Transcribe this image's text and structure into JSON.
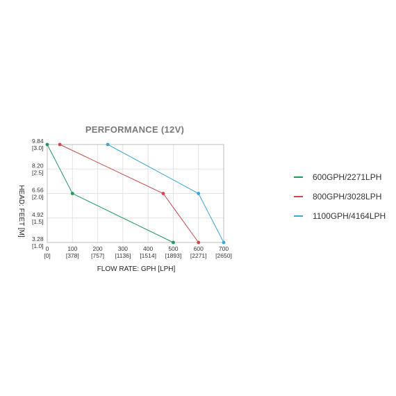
{
  "chart_data": {
    "type": "line",
    "title": "PERFORMANCE (12V)",
    "xlabel": "FLOW RATE: GPH [LPH]",
    "ylabel": "HEAD: FEET [M]",
    "xlim": [
      0,
      700
    ],
    "ylim": [
      3.28,
      9.84
    ],
    "x_ticks": [
      {
        "value": 0,
        "label": "0",
        "sub": "[0]"
      },
      {
        "value": 100,
        "label": "100",
        "sub": "[378]"
      },
      {
        "value": 200,
        "label": "200",
        "sub": "[757]"
      },
      {
        "value": 300,
        "label": "300",
        "sub": "[1136]"
      },
      {
        "value": 400,
        "label": "400",
        "sub": "[1514]"
      },
      {
        "value": 500,
        "label": "500",
        "sub": "[1893]"
      },
      {
        "value": 600,
        "label": "600",
        "sub": "[2271]"
      },
      {
        "value": 700,
        "label": "700",
        "sub": "[2650]"
      }
    ],
    "y_ticks": [
      {
        "value": 9.84,
        "label": "9.84",
        "sub": "[3.0]"
      },
      {
        "value": 8.2,
        "label": "8.20",
        "sub": "[2.5]"
      },
      {
        "value": 6.56,
        "label": "6.56",
        "sub": "[2.0]"
      },
      {
        "value": 4.92,
        "label": "4.92",
        "sub": "[1.5]"
      },
      {
        "value": 3.28,
        "label": "3.28",
        "sub": "[1.0]"
      }
    ],
    "grid": true,
    "legend_position": "right",
    "series": [
      {
        "name": "600GPH/2271LPH",
        "color": "#1e9b5a",
        "points": [
          [
            0,
            9.84
          ],
          [
            100,
            6.56
          ],
          [
            500,
            3.28
          ]
        ]
      },
      {
        "name": "800GPH/3028LPH",
        "color": "#d0454a",
        "points": [
          [
            50,
            9.84
          ],
          [
            460,
            6.56
          ],
          [
            600,
            3.28
          ]
        ]
      },
      {
        "name": "1100GPH/4164LPH",
        "color": "#3aa7d6",
        "points": [
          [
            240,
            9.84
          ],
          [
            600,
            6.56
          ],
          [
            700,
            3.28
          ]
        ]
      }
    ]
  }
}
